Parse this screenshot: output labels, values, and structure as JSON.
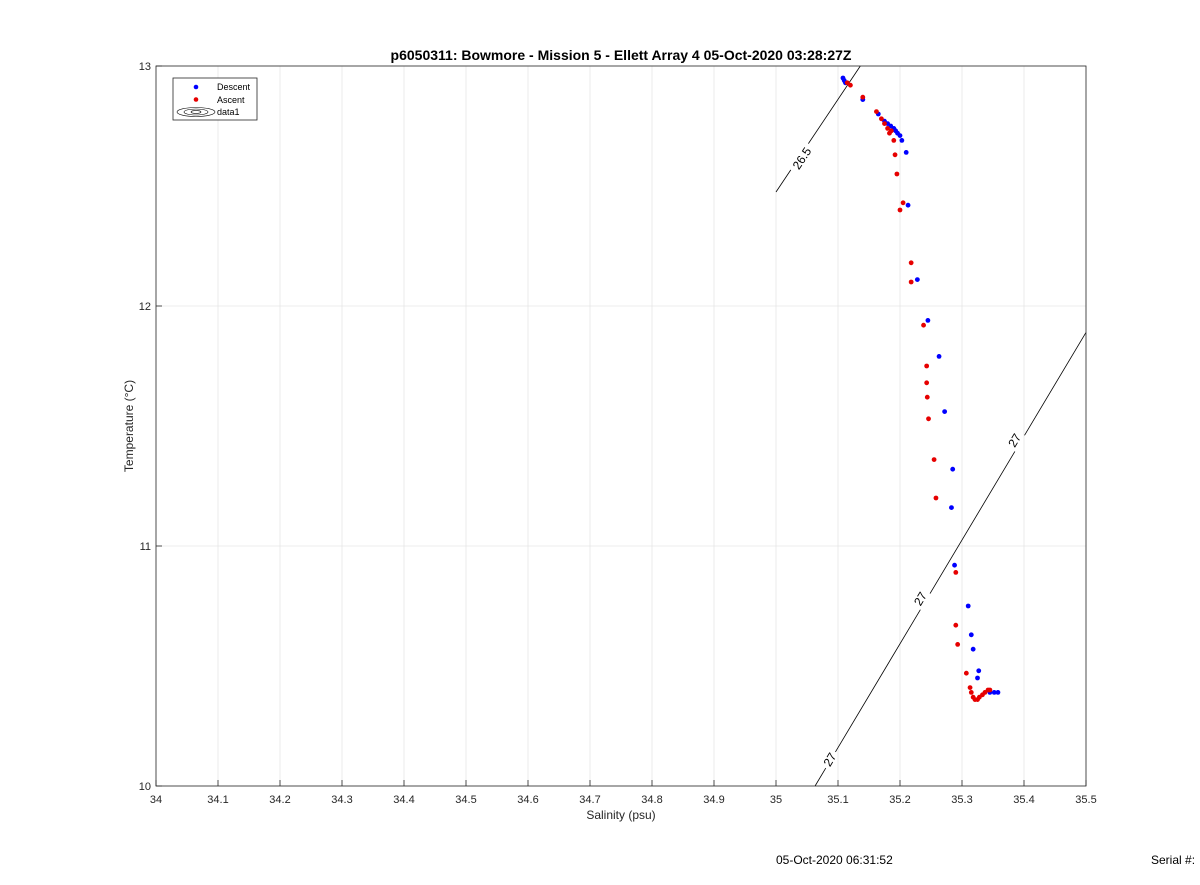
{
  "chart_data": {
    "type": "scatter",
    "title": "p6050311: Bowmore - Mission 5 - Ellett Array 4 05-Oct-2020 03:28:27Z",
    "xlabel": "Salinity (psu)",
    "ylabel": "Temperature (°C)",
    "xlim": [
      34,
      35.5
    ],
    "ylim": [
      10,
      13
    ],
    "xticks": [
      "34",
      "34.1",
      "34.2",
      "34.3",
      "34.4",
      "34.5",
      "34.6",
      "34.7",
      "34.8",
      "34.9",
      "35",
      "35.1",
      "35.2",
      "35.3",
      "35.4",
      "35.5"
    ],
    "yticks": [
      "10",
      "11",
      "12",
      "13"
    ],
    "grid": true,
    "legend": {
      "position": "top-left",
      "entries": [
        "Descent",
        "Ascent",
        "data1"
      ]
    },
    "series": [
      {
        "name": "Descent",
        "color": "#0000ff",
        "points": [
          [
            35.108,
            12.95
          ],
          [
            35.11,
            12.94
          ],
          [
            35.112,
            12.93
          ],
          [
            35.14,
            12.86
          ],
          [
            35.165,
            12.8
          ],
          [
            35.175,
            12.77
          ],
          [
            35.18,
            12.76
          ],
          [
            35.185,
            12.75
          ],
          [
            35.19,
            12.74
          ],
          [
            35.193,
            12.73
          ],
          [
            35.196,
            12.72
          ],
          [
            35.2,
            12.71
          ],
          [
            35.203,
            12.69
          ],
          [
            35.21,
            12.64
          ],
          [
            35.213,
            12.42
          ],
          [
            35.228,
            12.11
          ],
          [
            35.245,
            11.94
          ],
          [
            35.263,
            11.79
          ],
          [
            35.272,
            11.56
          ],
          [
            35.285,
            11.32
          ],
          [
            35.283,
            11.16
          ],
          [
            35.288,
            10.92
          ],
          [
            35.31,
            10.75
          ],
          [
            35.315,
            10.63
          ],
          [
            35.318,
            10.57
          ],
          [
            35.327,
            10.48
          ],
          [
            35.325,
            10.45
          ],
          [
            35.345,
            10.39
          ],
          [
            35.352,
            10.39
          ],
          [
            35.358,
            10.39
          ]
        ]
      },
      {
        "name": "Ascent",
        "color": "#e60000",
        "points": [
          [
            35.115,
            12.93
          ],
          [
            35.12,
            12.92
          ],
          [
            35.14,
            12.87
          ],
          [
            35.162,
            12.81
          ],
          [
            35.17,
            12.78
          ],
          [
            35.175,
            12.76
          ],
          [
            35.18,
            12.74
          ],
          [
            35.183,
            12.72
          ],
          [
            35.186,
            12.73
          ],
          [
            35.19,
            12.69
          ],
          [
            35.192,
            12.63
          ],
          [
            35.195,
            12.55
          ],
          [
            35.2,
            12.4
          ],
          [
            35.205,
            12.43
          ],
          [
            35.218,
            12.18
          ],
          [
            35.218,
            12.1
          ],
          [
            35.238,
            11.92
          ],
          [
            35.243,
            11.75
          ],
          [
            35.243,
            11.68
          ],
          [
            35.244,
            11.62
          ],
          [
            35.246,
            11.53
          ],
          [
            35.255,
            11.36
          ],
          [
            35.258,
            11.2
          ],
          [
            35.29,
            10.89
          ],
          [
            35.29,
            10.67
          ],
          [
            35.293,
            10.59
          ],
          [
            35.307,
            10.47
          ],
          [
            35.313,
            10.41
          ],
          [
            35.315,
            10.39
          ],
          [
            35.318,
            10.37
          ],
          [
            35.321,
            10.36
          ],
          [
            35.325,
            10.36
          ],
          [
            35.328,
            10.37
          ],
          [
            35.333,
            10.38
          ],
          [
            35.337,
            10.39
          ],
          [
            35.342,
            10.4
          ],
          [
            35.345,
            10.4
          ]
        ]
      }
    ],
    "contours": [
      {
        "label": "26.5",
        "points": [
          [
            35.0,
            12.475
          ],
          [
            35.136,
            13.0
          ]
        ],
        "label_positions": [
          [
            35.042,
            12.615
          ]
        ]
      },
      {
        "label": "27",
        "points": [
          [
            35.063,
            10.0
          ],
          [
            35.5,
            11.89
          ]
        ],
        "label_positions": [
          [
            35.087,
            10.11
          ],
          [
            35.233,
            10.78
          ],
          [
            35.385,
            11.44
          ]
        ]
      }
    ]
  },
  "footer": {
    "timestamp": "05-Oct-2020 06:31:52",
    "serial_label": "Serial #:"
  }
}
